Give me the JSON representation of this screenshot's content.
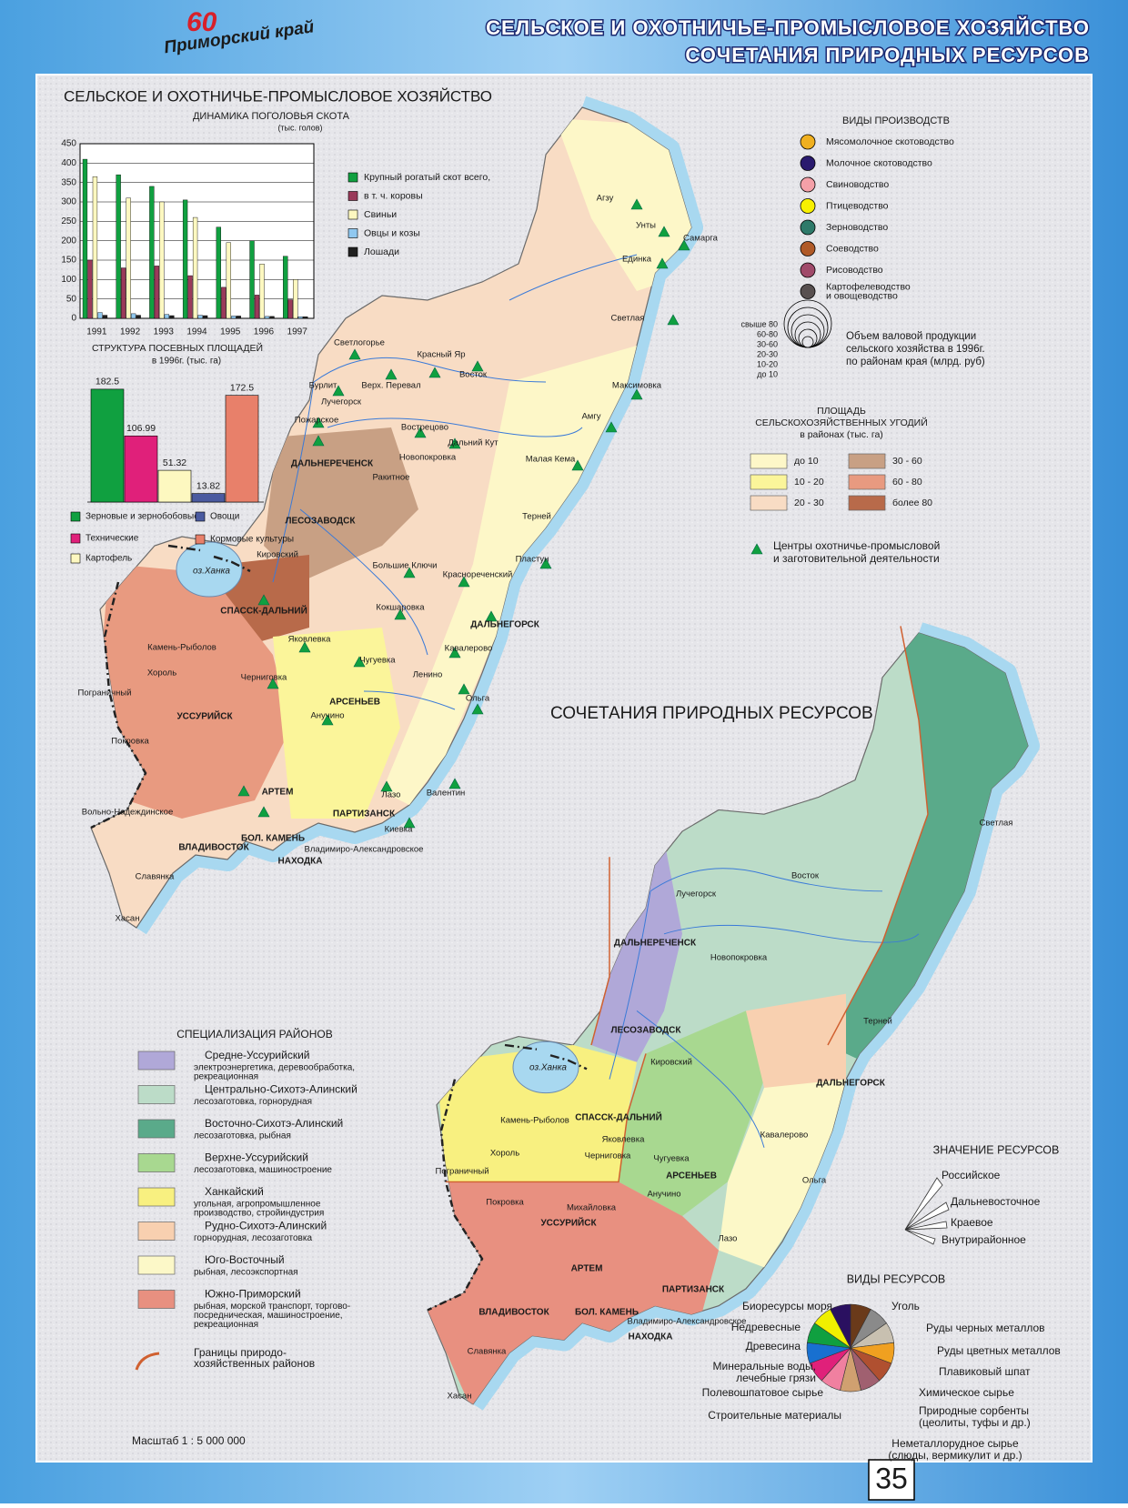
{
  "header": {
    "logo_number": "60",
    "logo_text": "Приморский край",
    "title_line1": "СЕЛЬСКОЕ И ОХОТНИЧЬЕ-ПРОМЫСЛОВОЕ ХОЗЯЙСТВО",
    "title_line2": "СОЧЕТАНИЯ ПРИРОДНЫХ РЕСУРСОВ"
  },
  "agri_map": {
    "title": "СЕЛЬСКОЕ И ОХОТНИЧЬЕ-ПРОМЫСЛОВОЕ ХОЗЯЙСТВО",
    "lake": "оз.Ханка",
    "places": [
      "Агзу",
      "Унты",
      "Самарга",
      "Единка",
      "Светлая",
      "Светлогорье",
      "Красный Яр",
      "Бурлит",
      "Верх. Перевал",
      "Восток",
      "Лучегорск",
      "Максимовка",
      "Пожарское",
      "Амгу",
      "Вострецово",
      "Дальний Кут",
      "Новопокровка",
      "Малая Кема",
      "ДАЛЬНЕРЕЧЕНСК",
      "Ракитное",
      "ЛЕСОЗАВОДСК",
      "Терней",
      "Кировский",
      "Пластун",
      "Большие Ключи",
      "Краснореченский",
      "СПАССК-ДАЛЬНИЙ",
      "ДАЛЬНЕГОРСК",
      "Камень-Рыболов",
      "Кокшаровка",
      "Хороль",
      "Яковлевка",
      "Кавалерово",
      "Пограничный",
      "Черниговка",
      "Чугуевка",
      "Ленино",
      "АРСЕНЬЕВ",
      "УССУРИЙСК",
      "Анучино",
      "Ольга",
      "Покровка",
      "Лазо",
      "АРТЕМ",
      "Валентин",
      "Вольно-Надеждинское",
      "ПАРТИЗАНСК",
      "БОЛ. КАМЕНЬ",
      "Киевка",
      "ВЛАДИВОСТОК",
      "Владимиро-Александровское",
      "НАХОДКА",
      "Славянка",
      "Хасан"
    ],
    "production_legend": {
      "title": "ВИДЫ ПРОИЗВОДСТВ",
      "items": [
        {
          "label": [
            "Мясомолочное скотоводство"
          ],
          "color": "#f0b020"
        },
        {
          "label": [
            "Молочное скотоводство"
          ],
          "color": "#2a1a6e"
        },
        {
          "label": [
            "Свиноводство"
          ],
          "color": "#f4a0a8"
        },
        {
          "label": [
            "Птицеводство"
          ],
          "color": "#f8f000"
        },
        {
          "label": [
            "Зерноводство"
          ],
          "color": "#2e7a6a"
        },
        {
          "label": [
            "Соеводство"
          ],
          "color": "#b05a28"
        },
        {
          "label": [
            "Рисоводство"
          ],
          "color": "#a04a6a"
        },
        {
          "label": [
            "Картофелеводство",
            "и овощеводство"
          ],
          "color": "#585050"
        }
      ]
    },
    "volume_legend": {
      "classes": [
        "свыше 80",
        "60-80",
        "30-60",
        "20-30",
        "10-20",
        "до 10"
      ],
      "caption": [
        "Объем валовой продукции",
        "сельского хозяйства в 1996г.",
        "по районам края (млрд. руб)"
      ]
    },
    "area_legend": {
      "title": [
        "ПЛОЩАДЬ",
        "СЕЛЬСКОХОЗЯЙСТВЕННЫХ УГОДИЙ",
        "в районах  (тыс. га)"
      ],
      "items": [
        {
          "label": "до 10",
          "color": "#fdf7c8"
        },
        {
          "label": "10 - 20",
          "color": "#fbf59a"
        },
        {
          "label": "20 - 30",
          "color": "#f8dcc4"
        },
        {
          "label": "30 - 60",
          "color": "#c8a084"
        },
        {
          "label": "60 - 80",
          "color": "#e89a80"
        },
        {
          "label": "более 80",
          "color": "#b86a4a"
        }
      ]
    },
    "hunting_legend": [
      "Центры охотничье-промысловой",
      "и заготовительной деятельности"
    ]
  },
  "chart_data": [
    {
      "type": "bar",
      "title": "ДИНАМИКА ПОГОЛОВЬЯ СКОТА",
      "subtitle": "(тыс. голов)",
      "categories": [
        "1991",
        "1992",
        "1993",
        "1994",
        "1995",
        "1996",
        "1997"
      ],
      "series": [
        {
          "name": "Крупный рогатый скот всего,",
          "color": "#10a040",
          "values": [
            410,
            370,
            340,
            305,
            235,
            200,
            160
          ]
        },
        {
          "name": "в т. ч. коровы",
          "color": "#9a3a5a",
          "values": [
            150,
            130,
            135,
            110,
            80,
            60,
            48
          ]
        },
        {
          "name": "Свиньи",
          "color": "#fdf8c0",
          "values": [
            365,
            310,
            300,
            260,
            195,
            140,
            100
          ]
        },
        {
          "name": "Овцы и козы",
          "color": "#90c8f0",
          "values": [
            15,
            12,
            10,
            8,
            6,
            5,
            4
          ]
        },
        {
          "name": "Лошади",
          "color": "#202020",
          "values": [
            8,
            8,
            7,
            7,
            6,
            5,
            4
          ]
        }
      ],
      "ylim": [
        0,
        450
      ],
      "yticks": [
        0,
        50,
        100,
        150,
        200,
        250,
        300,
        350,
        400,
        450
      ]
    },
    {
      "type": "bar",
      "title": "СТРУКТУРА ПОСЕВНЫХ ПЛОЩАДЕЙ",
      "subtitle": "в 1996г. (тыс. га)",
      "categories": [
        "Зерновые и зернобобовые",
        "Технические",
        "Картофель",
        "Овощи",
        "Кормовые культуры"
      ],
      "values": [
        182.5,
        106.99,
        51.32,
        13.82,
        172.5
      ],
      "colors": [
        "#10a040",
        "#e0207a",
        "#fdf8c0",
        "#4a5aa0",
        "#e8806a"
      ]
    }
  ],
  "resource_map": {
    "title": "СОЧЕТАНИЯ  ПРИРОДНЫХ РЕСУРСОВ",
    "lake": "оз.Ханка",
    "places": [
      "Светлая",
      "Лучегорск",
      "Восток",
      "ДАЛЬНЕРЕЧЕНСК",
      "Новопокровка",
      "ЛЕСОЗАВОДСК",
      "Терней",
      "Кировский",
      "ДАЛЬНЕГОРСК",
      "СПАССК-ДАЛЬНИЙ",
      "Камень-Рыболов",
      "Яковлевка",
      "Хороль",
      "Кавалерово",
      "Пограничный",
      "Черниговка",
      "Чугуевка",
      "АРСЕНЬЕВ",
      "Ольга",
      "Анучино",
      "Покровка",
      "Михайловка",
      "УССУРИЙСК",
      "Лазо",
      "АРТЕМ",
      "ПАРТИЗАНСК",
      "ВЛАДИВОСТОК",
      "БОЛ. КАМЕНЬ",
      "Владимиро-Александровское",
      "НАХОДКА",
      "Славянка",
      "Хасан"
    ],
    "specialization_legend": {
      "title": "СПЕЦИАЛИЗАЦИЯ РАЙОНОВ",
      "items": [
        {
          "name": "Средне-Уссурийский",
          "desc": [
            "электроэнергетика, деревообработка,",
            "рекреационная"
          ],
          "color": "#b0a8d8"
        },
        {
          "name": "Центрально-Сихотэ-Алинский",
          "desc": [
            "лесозаготовка, горнорудная"
          ],
          "color": "#bcdcc8"
        },
        {
          "name": "Восточно-Сихотэ-Алинский",
          "desc": [
            "лесозаготовка, рыбная"
          ],
          "color": "#5aaa8a"
        },
        {
          "name": "Верхне-Уссурийский",
          "desc": [
            "лесозаготовка, машиностроение"
          ],
          "color": "#a8d890"
        },
        {
          "name": "Ханкайский",
          "desc": [
            "угольная, агропромышленное",
            "производство, стройиндустрия"
          ],
          "color": "#f8f080"
        },
        {
          "name": "Рудно-Сихотэ-Алинский",
          "desc": [
            "горнорудная, лесозаготовка"
          ],
          "color": "#f8d0b0"
        },
        {
          "name": "Юго-Восточный",
          "desc": [
            "рыбная, лесоэкспортная"
          ],
          "color": "#fcf8c8"
        },
        {
          "name": "Южно-Приморский",
          "desc": [
            "рыбная, морской транспорт, торгово-",
            "посредническая, машиностроение,",
            "рекреационная"
          ],
          "color": "#e89080"
        }
      ],
      "border": [
        "Границы природо-",
        "хозяйственных районов"
      ],
      "border_color": "#d06030"
    },
    "significance_legend": {
      "title": "ЗНАЧЕНИЕ РЕСУРСОВ",
      "items": [
        "Российское",
        "Дальневосточное",
        "Краевое",
        "Внутрирайонное"
      ]
    },
    "resource_legend": {
      "title": "ВИДЫ РЕСУРСОВ",
      "items": [
        {
          "label": [
            "Уголь"
          ],
          "color": "#6a3a1a"
        },
        {
          "label": [
            "Руды черных металлов"
          ],
          "color": "#8a8a8a"
        },
        {
          "label": [
            "Руды цветных металлов"
          ],
          "color": "#c8c0b0"
        },
        {
          "label": [
            "Плавиковый шпат"
          ],
          "color": "#f0a020"
        },
        {
          "label": [
            "Химическое сырье"
          ],
          "color": "#b05030"
        },
        {
          "label": [
            "Природные сорбенты",
            "(цеолиты, туфы и др.)"
          ],
          "color": "#a06070"
        },
        {
          "label": [
            "Неметаллорудное сырье",
            "(слюды, вермикулит и др.)"
          ],
          "color": "#d0a070"
        },
        {
          "label": [
            "Строительные материалы"
          ],
          "color": "#f080a0"
        },
        {
          "label": [
            "Полевошпатовое сырье"
          ],
          "color": "#e0207a"
        },
        {
          "label": [
            "Минеральные воды,",
            "лечебные грязи"
          ],
          "color": "#1870d0"
        },
        {
          "label": [
            "Древесина"
          ],
          "color": "#10a040"
        },
        {
          "label": [
            "Недревесные"
          ],
          "color": "#f0f000"
        },
        {
          "label": [
            "Биоресурсы моря"
          ],
          "color": "#2a1060"
        }
      ]
    }
  },
  "footer": {
    "scale": "Масштаб 1 : 5 000 000",
    "page_number": "35"
  }
}
